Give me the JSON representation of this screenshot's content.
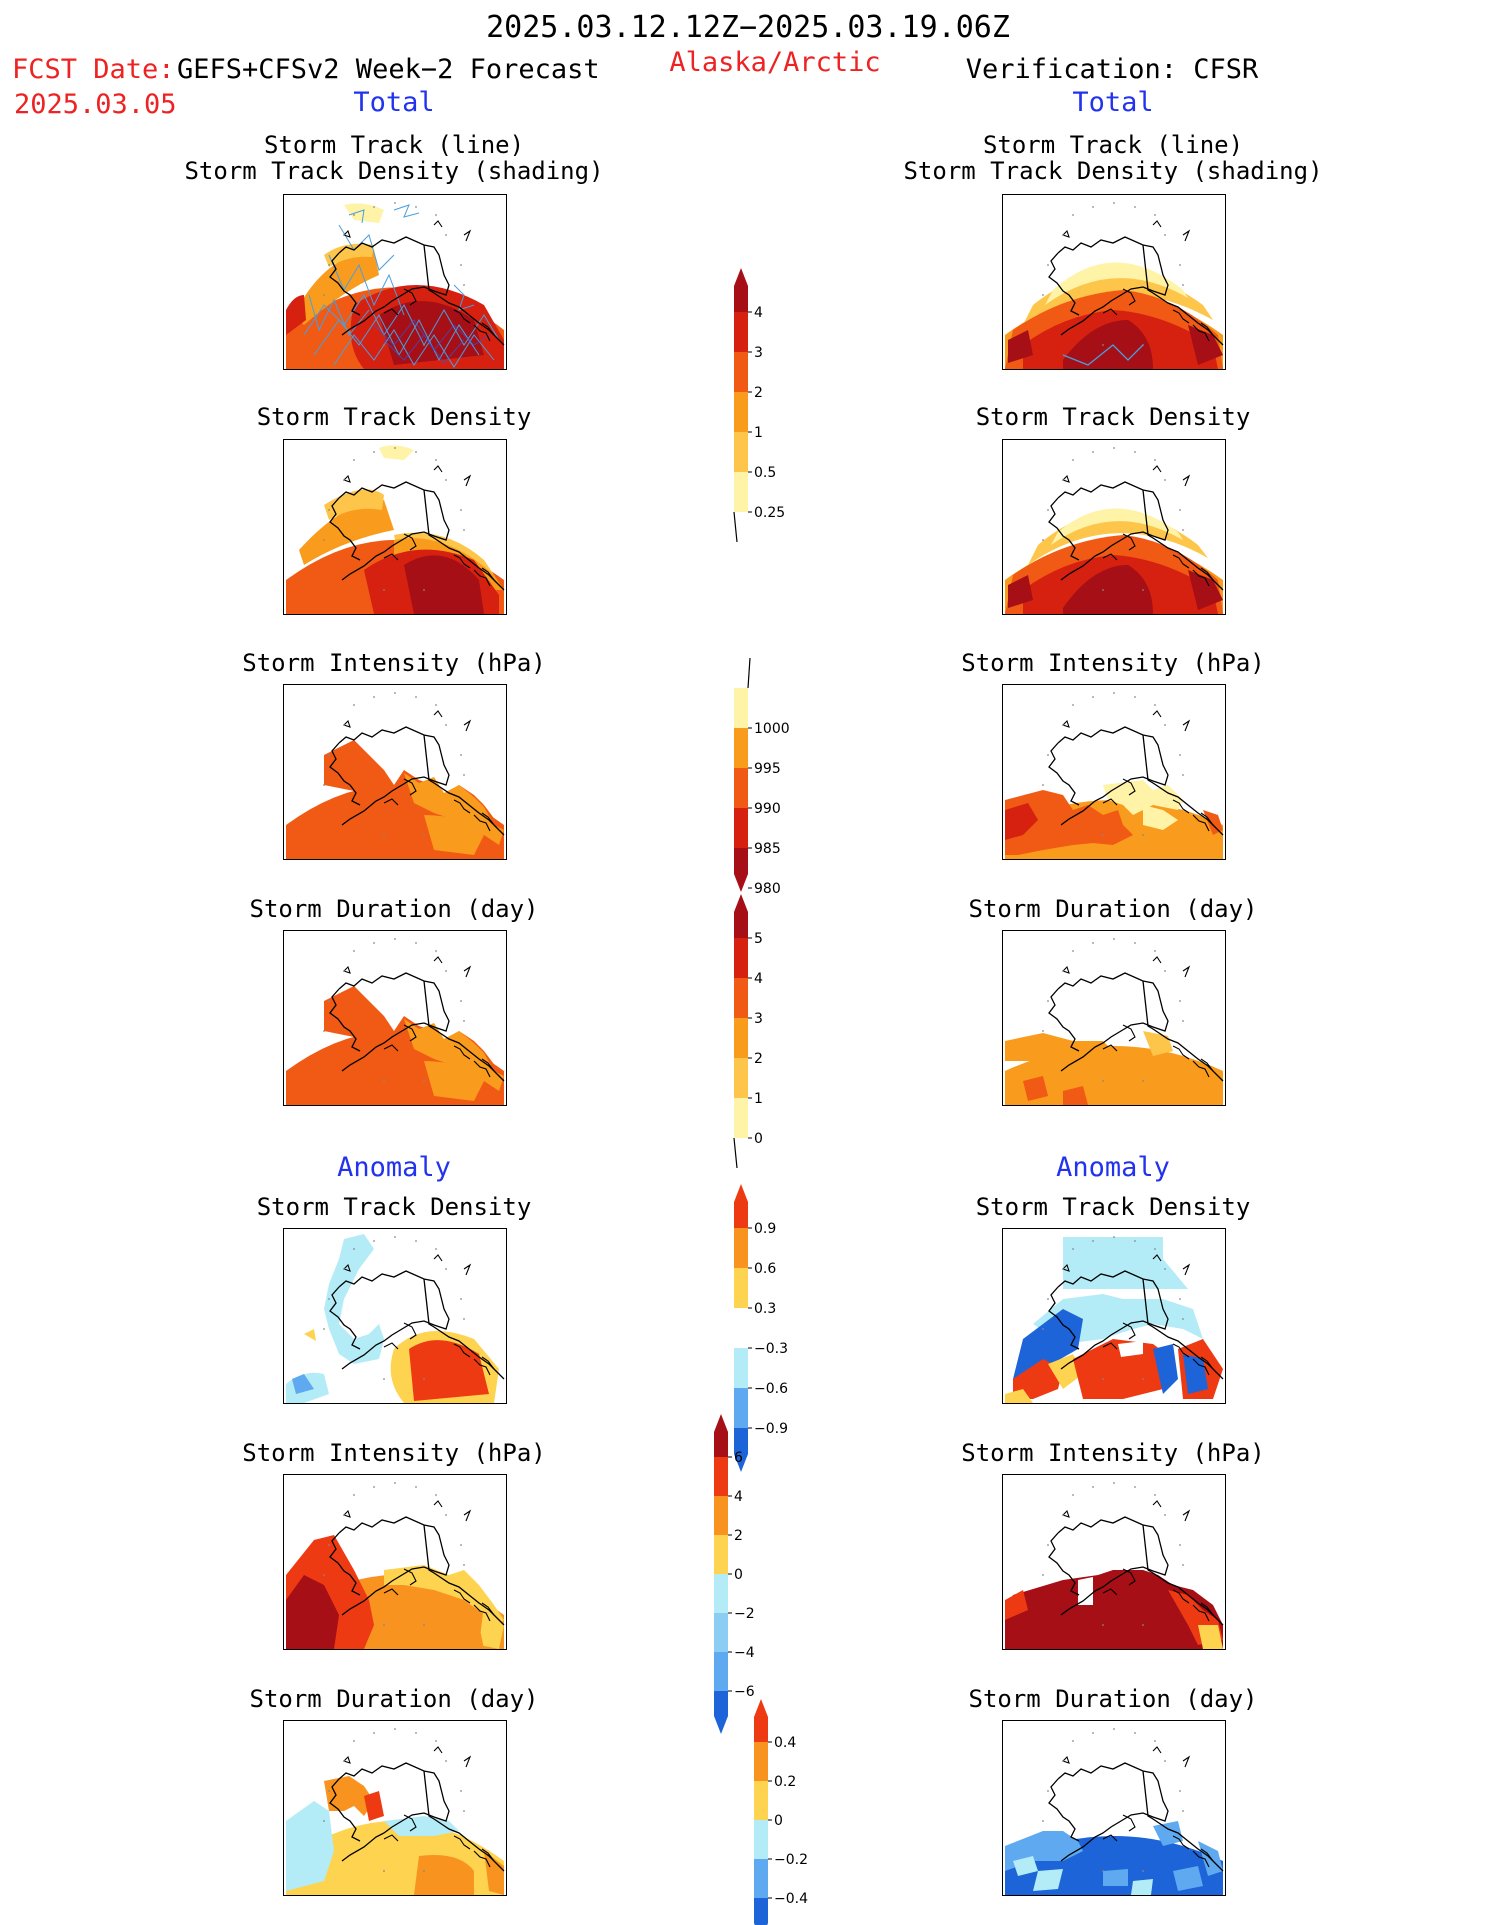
{
  "header": {
    "date_range": "2025.03.12.12Z−2025.03.19.06Z",
    "fcst_label": "FCST Date:",
    "fcst_model": "GEFS+CFSv2 Week−2 Forecast",
    "fcst_date": "2025.03.05",
    "region": "Alaska/Arctic",
    "verification": "Verification: CFSR"
  },
  "sections": {
    "total_left": "Total",
    "total_right": "Total",
    "anomaly_left": "Anomaly",
    "anomaly_right": "Anomaly"
  },
  "panel_titles": {
    "track_line": "Storm Track (line)",
    "track_density_shading": "Storm Track Density (shading)",
    "track_density": "Storm Track Density",
    "intensity": "Storm Intensity (hPa)",
    "duration": "Storm Duration (day)"
  },
  "colorbars": {
    "density": {
      "ticks": [
        "4",
        "3",
        "2",
        "1",
        "0.5",
        "0.25"
      ],
      "colors": [
        "#a50f15",
        "#d62010",
        "#f05a14",
        "#f99b1c",
        "#fdc54a",
        "#fef3a6"
      ]
    },
    "intensity": {
      "ticks": [
        "1000",
        "995",
        "990",
        "985",
        "980"
      ],
      "colors": [
        "#fef3a6",
        "#f99b1c",
        "#f05a14",
        "#d62010",
        "#a50f15"
      ]
    },
    "duration": {
      "ticks": [
        "5",
        "4",
        "3",
        "2",
        "1",
        "0"
      ],
      "colors": [
        "#a50f15",
        "#d62010",
        "#f05a14",
        "#f99b1c",
        "#fdc54a",
        "#fef3a6"
      ]
    },
    "density_anom": {
      "ticks": [
        "0.9",
        "0.6",
        "0.3",
        "−0.3",
        "−0.6",
        "−0.9"
      ],
      "colors": [
        "#ee3a12",
        "#f7931e",
        "#fed34f",
        "#ffffff",
        "#b3ecf7",
        "#5ea9ef",
        "#1c64d8"
      ]
    },
    "intensity_anom": {
      "ticks": [
        "6",
        "4",
        "2",
        "0",
        "−2",
        "−4",
        "−6"
      ],
      "colors": [
        "#a50f15",
        "#ee3a12",
        "#f7931e",
        "#fed34f",
        "#b3ecf7",
        "#8ccdf3",
        "#5ea9ef",
        "#1c64d8"
      ]
    },
    "duration_anom": {
      "ticks": [
        "0.4",
        "0.2",
        "0",
        "−0.2",
        "−0.4"
      ],
      "colors": [
        "#ee3a12",
        "#f7931e",
        "#fed34f",
        "#b3ecf7",
        "#5ea9ef",
        "#1c64d8"
      ]
    }
  }
}
